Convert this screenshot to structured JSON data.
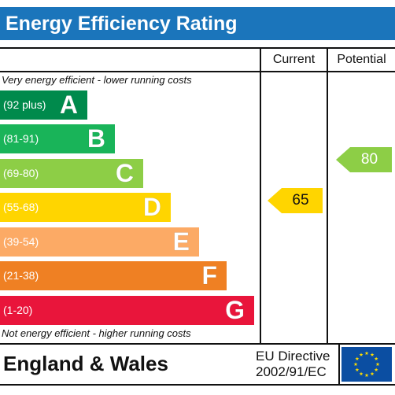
{
  "chart_data": {
    "type": "bar",
    "title": "Energy Efficiency Rating",
    "columns": [
      "Current",
      "Potential"
    ],
    "top_note": "Very energy efficient - lower running costs",
    "bottom_note": "Not energy efficient - higher running costs",
    "bands": [
      {
        "range": "(92 plus)",
        "letter": "A",
        "color": "#008a4c",
        "min": 92,
        "max": 100
      },
      {
        "range": "(81-91)",
        "letter": "B",
        "color": "#19b459",
        "min": 81,
        "max": 91
      },
      {
        "range": "(69-80)",
        "letter": "C",
        "color": "#8dce46",
        "min": 69,
        "max": 80
      },
      {
        "range": "(55-68)",
        "letter": "D",
        "color": "#ffd500",
        "min": 55,
        "max": 68
      },
      {
        "range": "(39-54)",
        "letter": "E",
        "color": "#fcaa65",
        "min": 39,
        "max": 54
      },
      {
        "range": "(21-38)",
        "letter": "F",
        "color": "#ef8023",
        "min": 21,
        "max": 38
      },
      {
        "range": "(1-20)",
        "letter": "G",
        "color": "#e9153b",
        "min": 1,
        "max": 20
      }
    ],
    "current": {
      "value": 65,
      "label": "65",
      "color": "#ffd500"
    },
    "potential": {
      "value": 80,
      "label": "80",
      "color": "#8dce46"
    }
  },
  "footer": {
    "region": "England & Wales",
    "directive_line1": "EU Directive",
    "directive_line2": "2002/91/EC",
    "flag_color": "#0b4ea2",
    "star_color": "#ffdd00"
  }
}
